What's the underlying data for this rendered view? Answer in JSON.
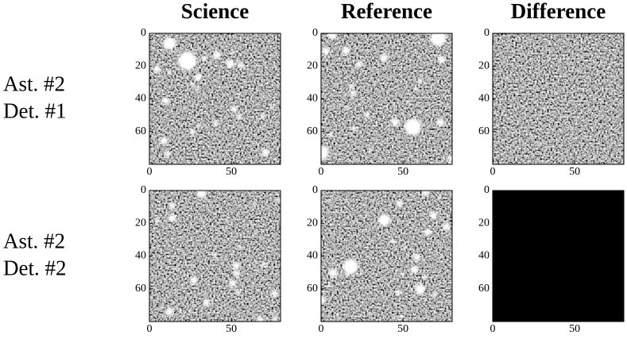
{
  "chart_data": [
    {
      "type": "image",
      "title": "Science",
      "row_label": [
        "Ast. #2",
        "Det. #1"
      ],
      "xlim": [
        0,
        80
      ],
      "ylim": [
        80,
        0
      ],
      "xticks": [
        0,
        50
      ],
      "yticks": [
        0,
        20,
        40,
        60
      ]
    },
    {
      "type": "image",
      "title": "Reference",
      "xlim": [
        0,
        80
      ],
      "ylim": [
        80,
        0
      ],
      "xticks": [
        0,
        50
      ],
      "yticks": [
        0,
        20,
        40,
        60
      ]
    },
    {
      "type": "image",
      "title": "Difference",
      "xlim": [
        0,
        80
      ],
      "ylim": [
        80,
        0
      ],
      "xticks": [
        0,
        50
      ],
      "yticks": [
        0,
        20,
        40,
        60
      ]
    },
    {
      "type": "image",
      "row_label": [
        "Ast. #2",
        "Det. #2"
      ],
      "xlim": [
        0,
        80
      ],
      "ylim": [
        80,
        0
      ],
      "xticks": [
        0,
        50
      ],
      "yticks": [
        0,
        20,
        40,
        60
      ]
    },
    {
      "type": "image",
      "xlim": [
        0,
        80
      ],
      "ylim": [
        80,
        0
      ],
      "xticks": [
        0,
        50
      ],
      "yticks": [
        0,
        20,
        40,
        60
      ]
    },
    {
      "type": "image",
      "color": "#000000",
      "xlim": [
        0,
        80
      ],
      "ylim": [
        80,
        0
      ],
      "xticks": [
        0,
        50
      ],
      "yticks": [
        0,
        20,
        40,
        60
      ]
    }
  ]
}
